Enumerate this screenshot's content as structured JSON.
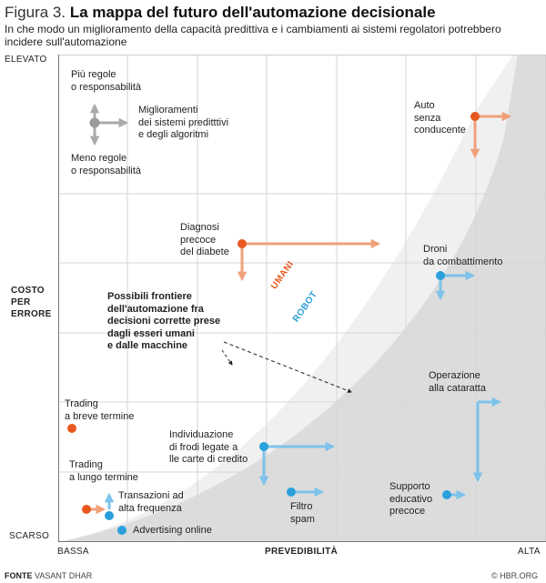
{
  "figure_label": "Figura 3.",
  "title": "La mappa del futuro dell'automazione decisionale",
  "subtitle": "In che modo un miglioramento della capacità predittiva e i cambiamenti ai sistemi regolatori potrebbero incidere sull'automazione",
  "y_axis": {
    "label_lines": [
      "COSTO",
      "PER",
      "ERRORE"
    ],
    "top": "ELEVATO",
    "bottom": "SCARSO"
  },
  "x_axis": {
    "label": "PREVEDIBILITÀ",
    "left": "BASSA",
    "right": "ALTA"
  },
  "legend": {
    "up_lines": [
      "Più regole",
      "o responsabilità"
    ],
    "right_lines": [
      "Miglioramenti",
      "dei sistemi preditttivi",
      "e degli algoritmi"
    ],
    "down_lines": [
      "Meno regole",
      "o responsabilità"
    ]
  },
  "frontier": {
    "label_lines": [
      "Possibili frontiere",
      "dell'automazione fra",
      "decisioni corrette prese",
      "dagli esseri umani",
      "e dalle macchine"
    ],
    "humans_label": "UMANI",
    "robots_label": "ROBOT"
  },
  "items": {
    "auto": [
      "Auto",
      "senza",
      "conducente"
    ],
    "diabete": [
      "Diagnosi",
      "precoce",
      "del diabete"
    ],
    "droni": [
      "Droni",
      "da combattimento"
    ],
    "cataratta": [
      "Operazione",
      "alla cataratta"
    ],
    "trading_breve": [
      "Trading",
      "a breve termine"
    ],
    "frodi": [
      "Individuazione",
      "di frodi legate a",
      "lle carte di credito"
    ],
    "trading_lungo": [
      "Trading",
      "a lungo termine"
    ],
    "alta_freq": [
      "Transazioni ad",
      "alta frequenza"
    ],
    "spam": [
      "Filtro",
      "spam"
    ],
    "educativo": [
      "Supporto",
      "educativo",
      "precoce"
    ],
    "advertising": [
      "Advertising online"
    ]
  },
  "colors": {
    "human": "#e8581e",
    "human_arrow": "#f0a07a",
    "robot": "#2b9fdc",
    "robot_arrow": "#7cc2ea",
    "legend": "#aaaaaa",
    "grid": "#d6d6d6",
    "region_light": "#f0f0f0",
    "region_dark": "#dcdcdc"
  },
  "footer": {
    "source_label": "FONTE",
    "source": "VASANT DHAR",
    "credit": "© HBR.ORG"
  }
}
